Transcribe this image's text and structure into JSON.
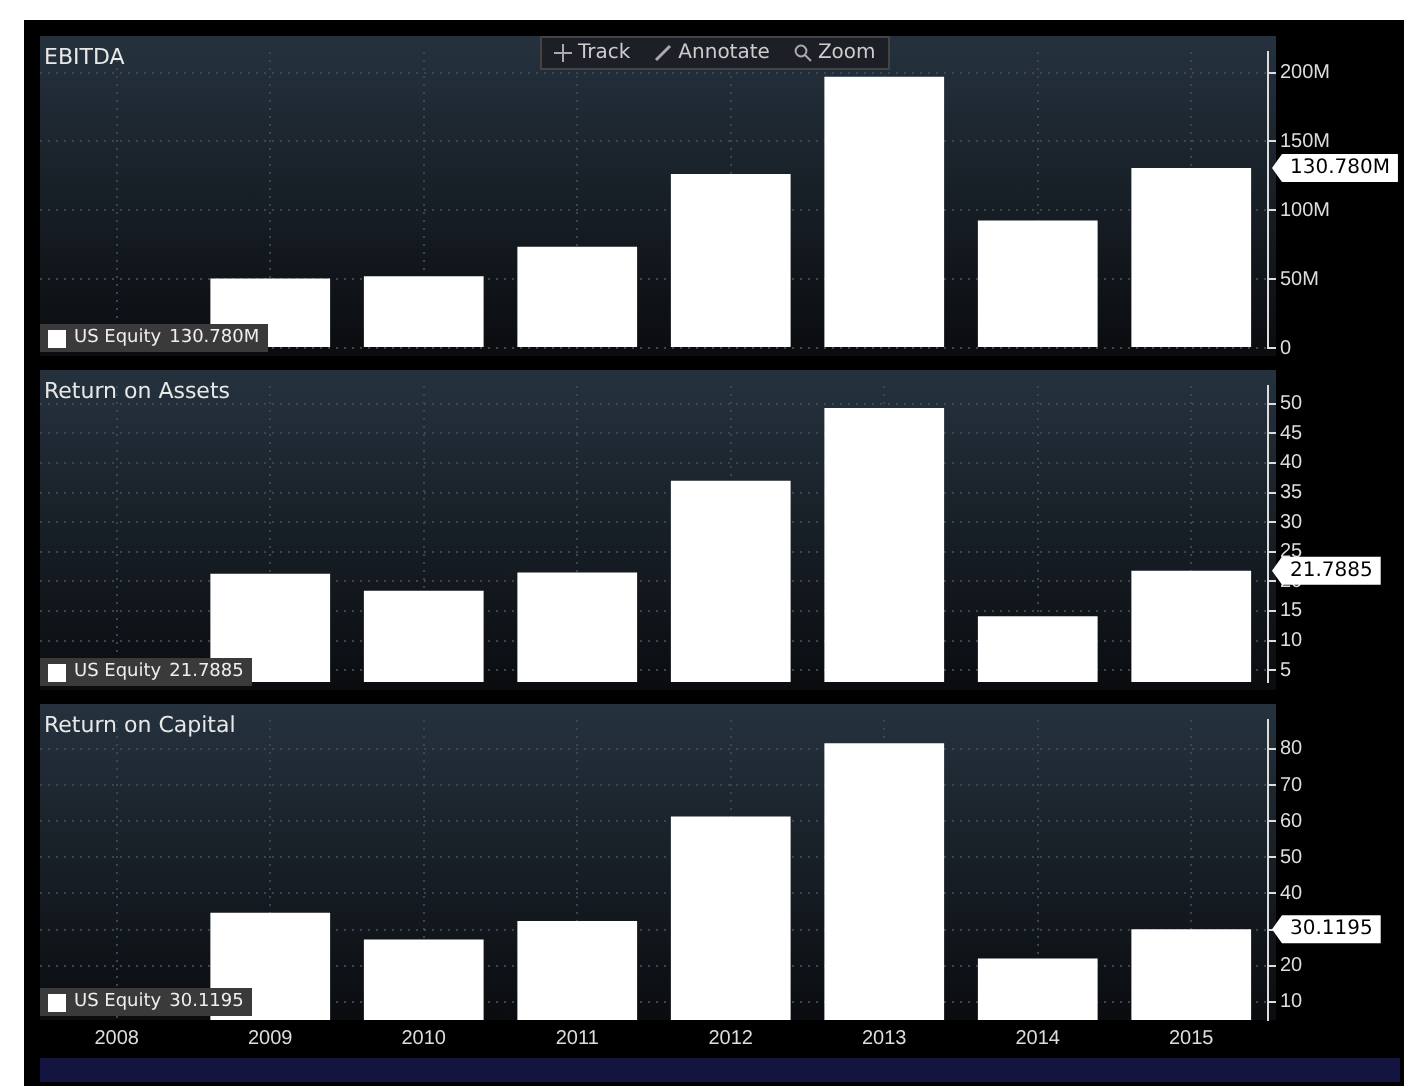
{
  "chart_data": [
    {
      "type": "bar",
      "title": "EBITDA",
      "categories": [
        "2008",
        "2009",
        "2010",
        "2011",
        "2012",
        "2013",
        "2014",
        "2015"
      ],
      "series": [
        {
          "name": "US Equity",
          "color": "#ffffff",
          "values": [
            null,
            50.4,
            52.2,
            73.6,
            126.4,
            197,
            92.6,
            130.78
          ]
        }
      ],
      "ylim": [
        0,
        215
      ],
      "yticks": [
        0,
        {
          "value": 50,
          "label": "50M"
        },
        {
          "value": 100,
          "label": "100M"
        },
        {
          "value": 150,
          "label": "150M"
        },
        {
          "value": 200,
          "label": "200M"
        }
      ],
      "grid": true,
      "legend": "bottom left",
      "tick_labels": "y",
      "annotations": [
        "130.780M",
        "Track",
        "Annotate",
        "Zoom"
      ]
    },
    {
      "type": "bar",
      "title": "Return on Assets",
      "categories": [
        "2008",
        "2009",
        "2010",
        "2011",
        "2012",
        "2013",
        "2014",
        "2015"
      ],
      "series": [
        {
          "name": "US Equity",
          "color": "#ffffff",
          "values": [
            null,
            21.3,
            18.4,
            21.5,
            37,
            49.3,
            14.1,
            21.7885
          ]
        }
      ],
      "ylim": [
        3,
        53
      ],
      "yticks": [
        5,
        10,
        15,
        20,
        25,
        30,
        35,
        40,
        45,
        50
      ],
      "grid": true,
      "legend": "bottom left",
      "tick_labels": "y",
      "annotations": [
        "21.7885"
      ]
    },
    {
      "type": "bar",
      "title": "Return on Capital",
      "categories": [
        "2008",
        "2009",
        "2010",
        "2011",
        "2012",
        "2013",
        "2014",
        "2015"
      ],
      "series": [
        {
          "name": "US Equity",
          "color": "#ffffff",
          "values": [
            null,
            34.7,
            27.3,
            32.4,
            61.3,
            81.6,
            22,
            30.1195
          ]
        }
      ],
      "ylim": [
        5,
        88
      ],
      "yticks": [
        10,
        20,
        {
          "value": 30,
          "label": null
        },
        40,
        50,
        60,
        70,
        80
      ],
      "grid": true,
      "legend": "bottom left",
      "annotations": [
        "30.1195"
      ]
    }
  ]
}
